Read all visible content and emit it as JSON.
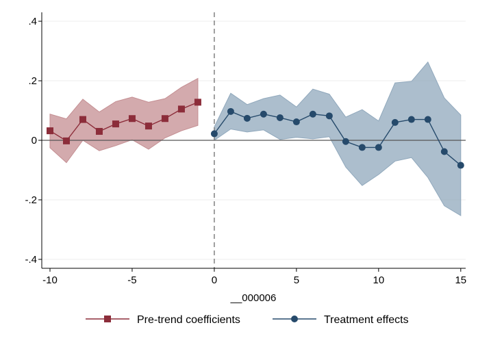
{
  "chart_data": {
    "type": "line",
    "title": "",
    "xlabel": "__000006",
    "ylabel": "",
    "xlim": [
      -10.5,
      15.3
    ],
    "ylim": [
      -0.43,
      0.43
    ],
    "x_ticks": [
      -10,
      -5,
      0,
      5,
      10,
      15
    ],
    "x_tick_labels": [
      "-10",
      "-5",
      "0",
      "5",
      "10",
      "15"
    ],
    "y_ticks": [
      -0.4,
      -0.2,
      0,
      0.2,
      0.4
    ],
    "y_tick_labels": [
      "-.4",
      "-.2",
      "0",
      ".2",
      ".4"
    ],
    "grid": true,
    "reference_lines": {
      "x": 0,
      "y": 0
    },
    "legend_position": "bottom",
    "series": [
      {
        "name": "Pre-trend coefficients",
        "color": "#8c2d3a",
        "band_color": "#c48e92",
        "marker": "square",
        "x": [
          -10,
          -9,
          -8,
          -7,
          -6,
          -5,
          -4,
          -3,
          -2,
          -1
        ],
        "y": [
          0.032,
          -0.002,
          0.07,
          0.03,
          0.055,
          0.073,
          0.048,
          0.073,
          0.105,
          0.128
        ],
        "lower": [
          -0.025,
          -0.075,
          0.0,
          -0.035,
          -0.018,
          0.002,
          -0.03,
          0.008,
          0.032,
          0.05
        ],
        "upper": [
          0.088,
          0.072,
          0.138,
          0.095,
          0.13,
          0.145,
          0.128,
          0.14,
          0.178,
          0.208
        ]
      },
      {
        "name": "Treatment effects",
        "color": "#264a6b",
        "band_color": "#90a8bc",
        "marker": "circle",
        "x": [
          0,
          1,
          2,
          3,
          4,
          5,
          6,
          7,
          8,
          9,
          10,
          11,
          12,
          13,
          14,
          15
        ],
        "y": [
          0.022,
          0.097,
          0.074,
          0.088,
          0.076,
          0.062,
          0.088,
          0.082,
          -0.004,
          -0.024,
          -0.024,
          0.06,
          0.07,
          0.07,
          -0.038,
          -0.084
        ],
        "lower": [
          0.0,
          0.038,
          0.028,
          0.035,
          0.003,
          0.01,
          0.005,
          0.012,
          -0.09,
          -0.152,
          -0.115,
          -0.07,
          -0.058,
          -0.125,
          -0.22,
          -0.253
        ],
        "upper": [
          0.045,
          0.158,
          0.12,
          0.14,
          0.152,
          0.112,
          0.172,
          0.155,
          0.078,
          0.103,
          0.065,
          0.193,
          0.198,
          0.263,
          0.142,
          0.085
        ]
      }
    ]
  }
}
